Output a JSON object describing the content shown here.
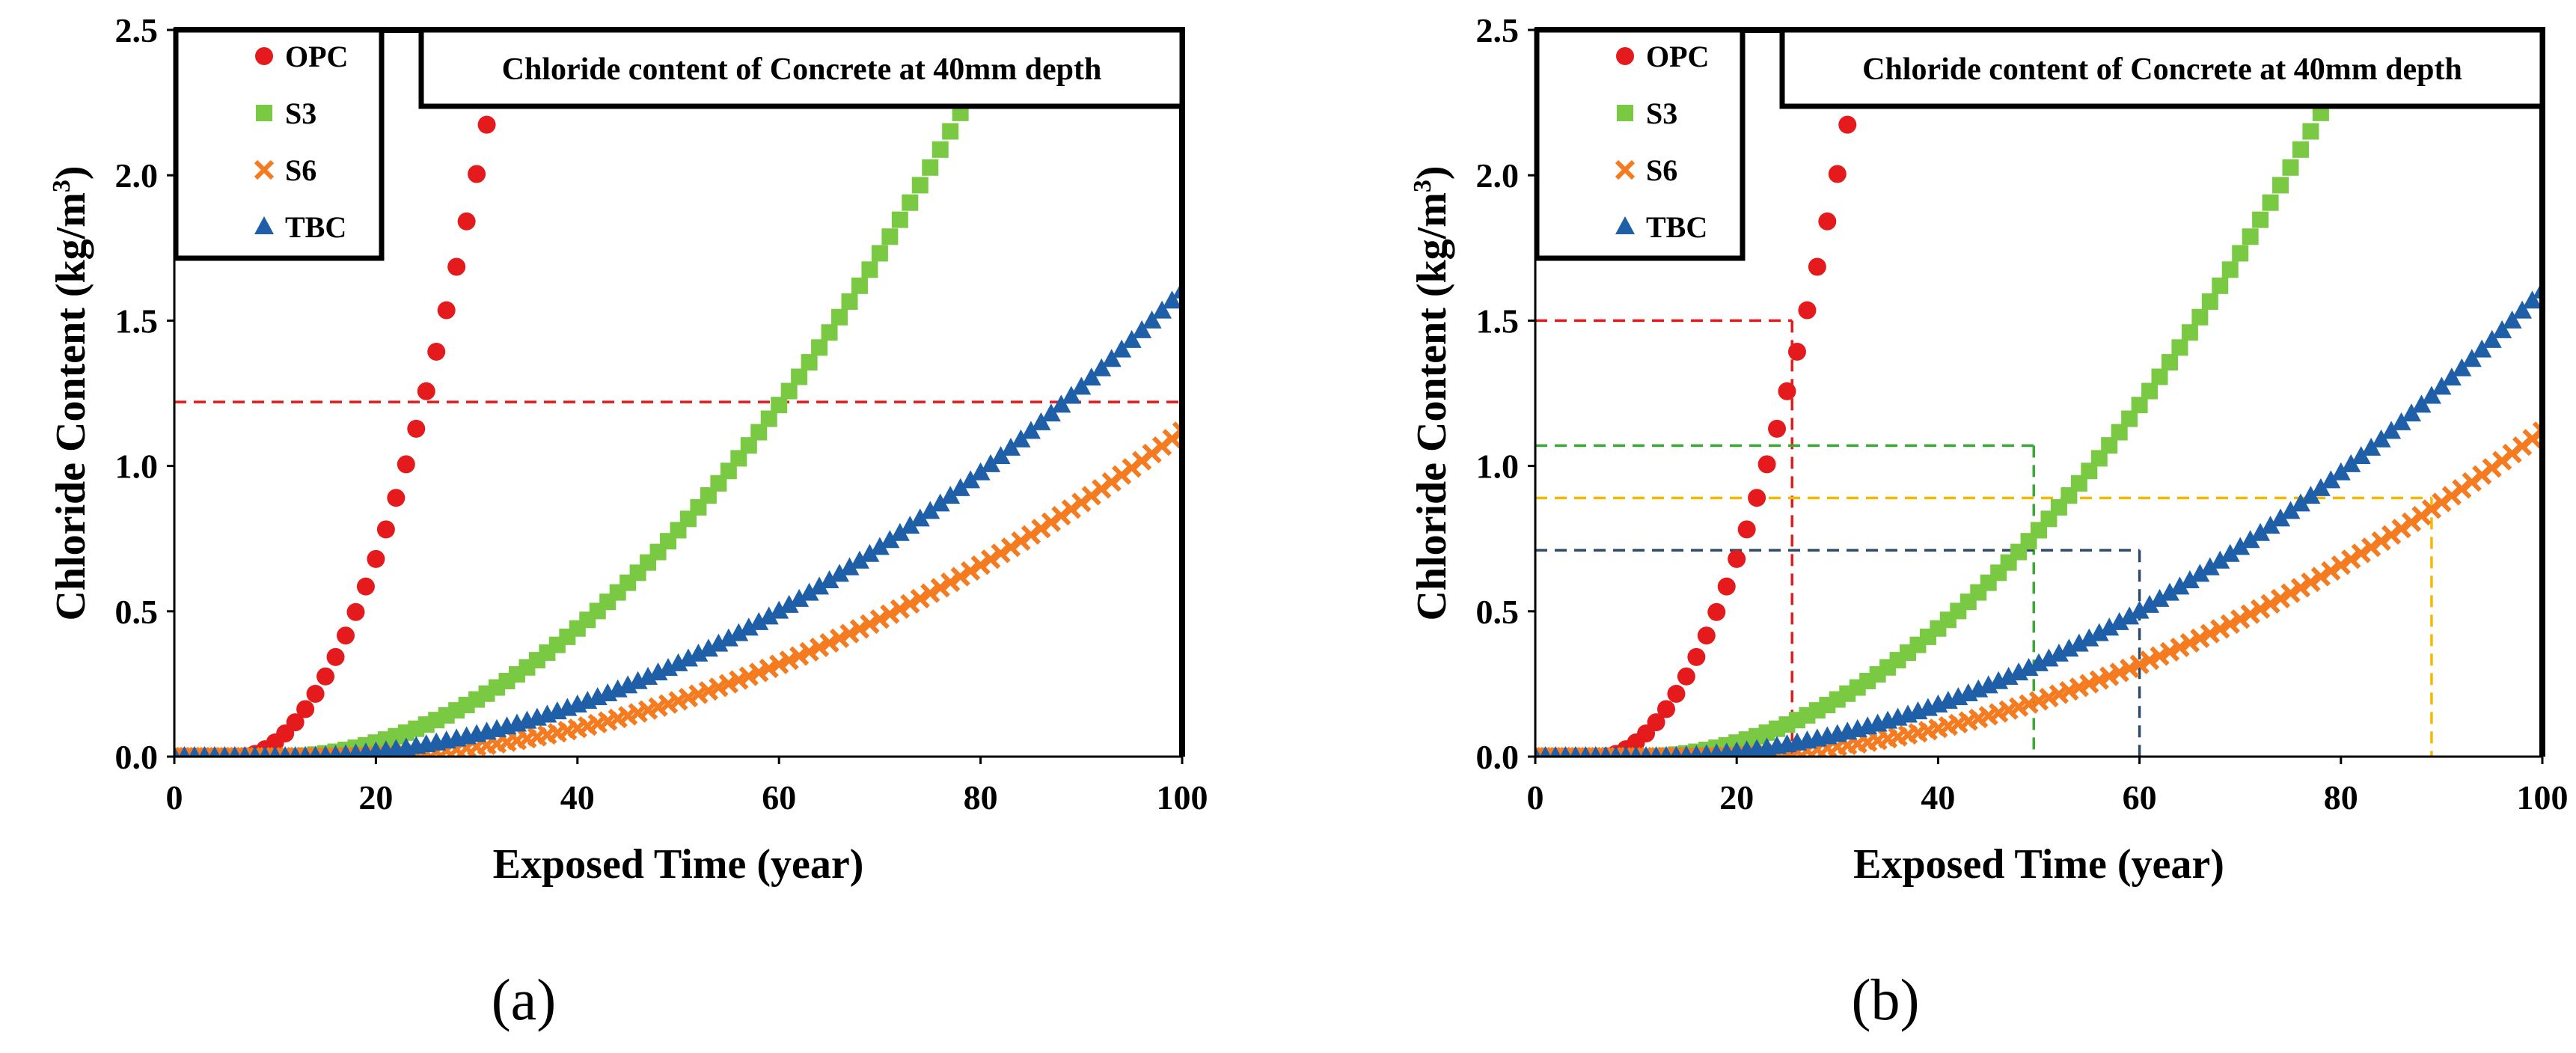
{
  "colors": {
    "OPC": "#e41a1c",
    "S3": "#7ac943",
    "S6": "#f47b20",
    "TBC": "#1f5fa8",
    "axis": "#000000",
    "ref_red": "#e41a1c",
    "ref_green": "#3aaa35",
    "ref_yellow": "#f5b800",
    "ref_navy": "#2e4a6b"
  },
  "chart_data": [
    {
      "type": "scatter",
      "panel_label": "(a)",
      "title": "Chloride content of Concrete at 40mm depth",
      "xlabel": "Exposed Time (year)",
      "ylabel_main": "Chloride Content (kg/m",
      "ylabel_sup": "3",
      "ylabel_close": ")",
      "xlim": [
        0,
        100
      ],
      "ylim": [
        0,
        2.5
      ],
      "xticks": [
        "0",
        "20",
        "40",
        "60",
        "80",
        "100"
      ],
      "yticks": [
        "0.0",
        "0.5",
        "1.0",
        "1.5",
        "2.0",
        "2.5"
      ],
      "legend": {
        "position": "top-left",
        "entries": [
          "OPC",
          "S3",
          "S6",
          "TBC"
        ]
      },
      "series": [
        {
          "name": "OPC",
          "marker": "circle",
          "onset": 6.5,
          "coef": 0.00425,
          "exp": 1.95,
          "x_end": 33,
          "step": 1
        },
        {
          "name": "S3",
          "marker": "square",
          "onset": 10.5,
          "coef": 0.0006,
          "exp": 1.95,
          "x_end": 78,
          "step": 1
        },
        {
          "name": "S6",
          "marker": "x",
          "onset": 16,
          "coef": 0.000198,
          "exp": 1.95,
          "x_end": 100,
          "step": 1
        },
        {
          "name": "TBC",
          "marker": "triangle",
          "onset": 12,
          "coef": 0.000296,
          "exp": 1.92,
          "x_end": 100,
          "step": 1
        }
      ],
      "ref_lines": [
        {
          "color": "ref_red",
          "y": 1.22,
          "x_from": 0,
          "x_to": 100
        }
      ]
    },
    {
      "type": "scatter",
      "panel_label": "(b)",
      "title": "Chloride content of Concrete at 40mm depth",
      "xlabel": "Exposed Time (year)",
      "ylabel_main": "Chloride Content (kg/m",
      "ylabel_sup": "3",
      "ylabel_close": ")",
      "xlim": [
        0,
        100
      ],
      "ylim": [
        0,
        2.5
      ],
      "xticks": [
        "0",
        "20",
        "40",
        "60",
        "80",
        "100"
      ],
      "yticks": [
        "0.0",
        "0.5",
        "1.0",
        "1.5",
        "2.0",
        "2.5"
      ],
      "legend": {
        "position": "top-left",
        "entries": [
          "OPC",
          "S3",
          "S6",
          "TBC"
        ]
      },
      "series": [
        {
          "name": "OPC",
          "marker": "circle",
          "onset": 6.5,
          "coef": 0.00425,
          "exp": 1.95,
          "x_end": 33,
          "step": 1
        },
        {
          "name": "S3",
          "marker": "square",
          "onset": 10.5,
          "coef": 0.0006,
          "exp": 1.95,
          "x_end": 78,
          "step": 1
        },
        {
          "name": "S6",
          "marker": "x",
          "onset": 16,
          "coef": 0.000198,
          "exp": 1.95,
          "x_end": 100,
          "step": 1
        },
        {
          "name": "TBC",
          "marker": "triangle",
          "onset": 12,
          "coef": 0.000296,
          "exp": 1.92,
          "x_end": 100,
          "step": 1
        }
      ],
      "ref_lines": [
        {
          "color": "ref_red",
          "y": 1.5,
          "x_from": 0,
          "x_to": 25.5,
          "drop_x": 25.5
        },
        {
          "color": "ref_green",
          "y": 1.07,
          "x_from": 0,
          "x_to": 49.5,
          "drop_x": 49.5
        },
        {
          "color": "ref_yellow",
          "y": 0.89,
          "x_from": 0,
          "x_to": 89,
          "drop_x": 89
        },
        {
          "color": "ref_navy",
          "y": 0.71,
          "x_from": 0,
          "x_to": 60,
          "drop_x": 60
        }
      ]
    }
  ]
}
